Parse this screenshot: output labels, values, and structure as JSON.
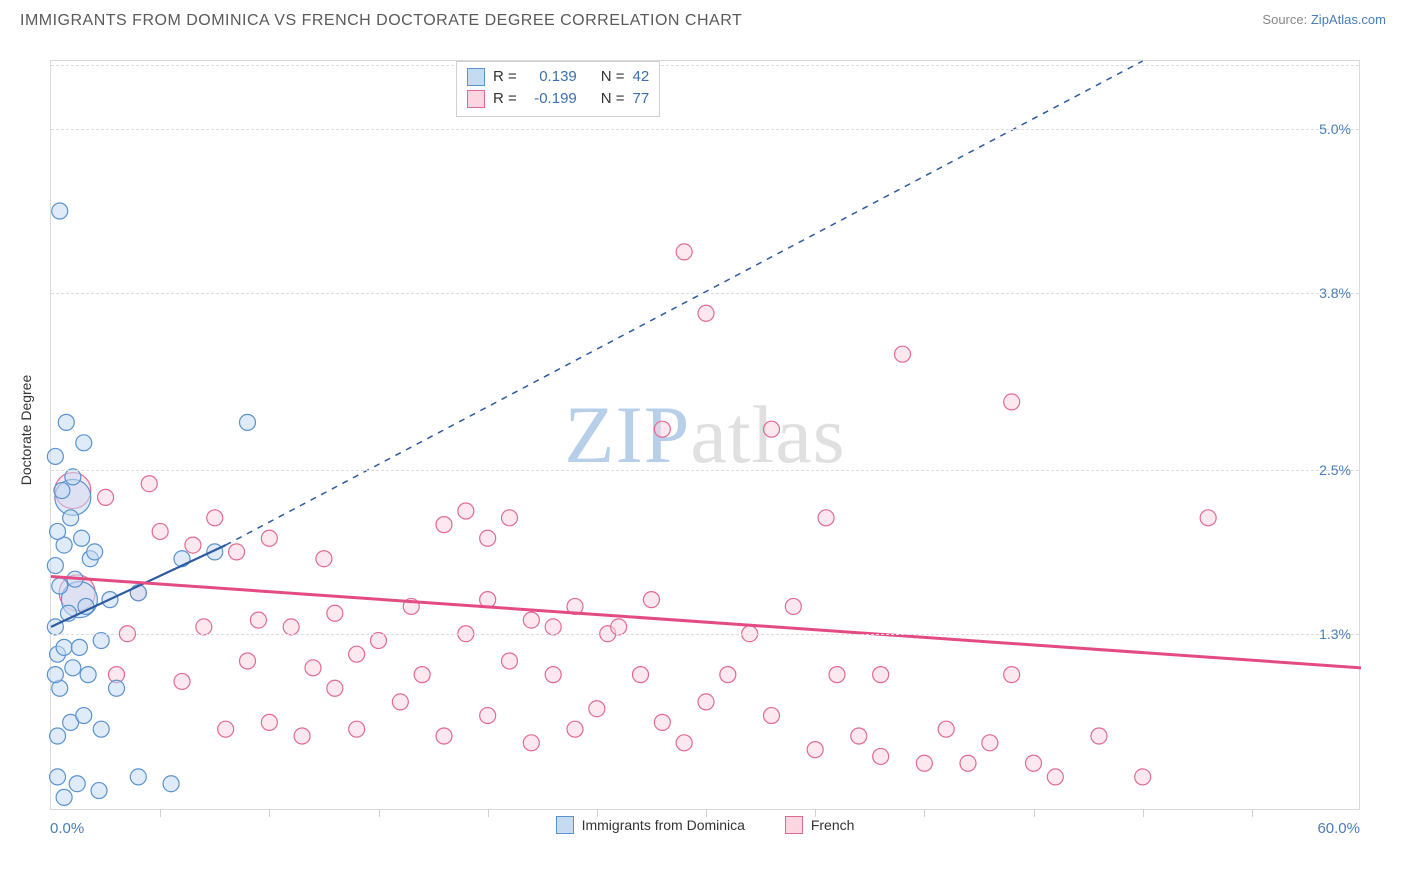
{
  "title": "IMMIGRANTS FROM DOMINICA VS FRENCH DOCTORATE DEGREE CORRELATION CHART",
  "source_label": "Source:",
  "source_name": "ZipAtlas.com",
  "watermark_a": "ZIP",
  "watermark_b": "atlas",
  "yaxis_title": "Doctorate Degree",
  "chart": {
    "type": "scatter-correlation",
    "background_color": "#ffffff",
    "grid_color": "#dcdcdc",
    "border_color": "#d9d9d9",
    "axis_label_color": "#4a7db5",
    "xlim": [
      0,
      60
    ],
    "ylim": [
      0,
      5.5
    ],
    "xticks_step": 5,
    "yticks": [
      1.3,
      2.5,
      3.8,
      5.0
    ],
    "xaxis_labels": {
      "min": "0.0%",
      "max": "60.0%"
    },
    "marker_radius": 8,
    "marker_radius_large": 18,
    "marker_stroke_width": 1.2,
    "series": [
      {
        "key": "dominica",
        "label": "Immigrants from Dominica",
        "color_fill": "#c5dbf2",
        "color_stroke": "#5a93cf",
        "r": "R =",
        "r_value": "0.139",
        "n": "N =",
        "n_value": "42",
        "trend": {
          "solid": {
            "x1": 0,
            "y1": 1.35,
            "x2": 8,
            "y2": 1.95
          },
          "dash": {
            "x1": 8,
            "y1": 1.95,
            "x2": 50,
            "y2": 5.5
          },
          "dash_pattern": "6,6",
          "width": 2.2
        },
        "points": [
          [
            0.3,
            0.25
          ],
          [
            0.6,
            0.1
          ],
          [
            1.2,
            0.2
          ],
          [
            2.2,
            0.15
          ],
          [
            4.0,
            0.25
          ],
          [
            5.5,
            0.2
          ],
          [
            0.3,
            0.55
          ],
          [
            0.9,
            0.65
          ],
          [
            1.5,
            0.7
          ],
          [
            0.4,
            0.9
          ],
          [
            0.2,
            1.0
          ],
          [
            1.0,
            1.05
          ],
          [
            1.7,
            1.0
          ],
          [
            0.3,
            1.15
          ],
          [
            0.6,
            1.2
          ],
          [
            1.3,
            1.2
          ],
          [
            2.3,
            1.25
          ],
          [
            0.2,
            1.35
          ],
          [
            0.8,
            1.45
          ],
          [
            1.6,
            1.5
          ],
          [
            2.7,
            1.55
          ],
          [
            0.4,
            1.65
          ],
          [
            1.1,
            1.7
          ],
          [
            0.2,
            1.8
          ],
          [
            1.8,
            1.85
          ],
          [
            0.6,
            1.95
          ],
          [
            1.4,
            2.0
          ],
          [
            2.0,
            1.9
          ],
          [
            0.3,
            2.05
          ],
          [
            0.9,
            2.15
          ],
          [
            0.5,
            2.35
          ],
          [
            1.0,
            2.45
          ],
          [
            0.2,
            2.6
          ],
          [
            1.5,
            2.7
          ],
          [
            0.7,
            2.85
          ],
          [
            9.0,
            2.85
          ],
          [
            0.4,
            4.4
          ],
          [
            6.0,
            1.85
          ],
          [
            7.5,
            1.9
          ],
          [
            4.0,
            1.6
          ],
          [
            3.0,
            0.9
          ],
          [
            2.3,
            0.6
          ]
        ],
        "big_points": [
          [
            1.3,
            1.55
          ],
          [
            1.0,
            2.3
          ]
        ]
      },
      {
        "key": "french",
        "label": "French",
        "color_fill": "#fbd6e1",
        "color_stroke": "#e16a94",
        "r": "R =",
        "r_value": "-0.199",
        "n": "N =",
        "n_value": "77",
        "trend": {
          "solid": {
            "x1": 0,
            "y1": 1.72,
            "x2": 60,
            "y2": 1.05
          },
          "dash": null,
          "width": 3
        },
        "points": [
          [
            3,
            1.0
          ],
          [
            4,
            1.6
          ],
          [
            5,
            2.05
          ],
          [
            6,
            0.95
          ],
          [
            6.5,
            1.95
          ],
          [
            7,
            1.35
          ],
          [
            7.5,
            2.15
          ],
          [
            8,
            0.6
          ],
          [
            8.5,
            1.9
          ],
          [
            9,
            1.1
          ],
          [
            9.5,
            1.4
          ],
          [
            10,
            0.65
          ],
          [
            10,
            2.0
          ],
          [
            11,
            1.35
          ],
          [
            11.5,
            0.55
          ],
          [
            12,
            1.05
          ],
          [
            12.5,
            1.85
          ],
          [
            13,
            0.9
          ],
          [
            13,
            1.45
          ],
          [
            14,
            0.6
          ],
          [
            14,
            1.15
          ],
          [
            15,
            1.25
          ],
          [
            16,
            0.8
          ],
          [
            16.5,
            1.5
          ],
          [
            17,
            1.0
          ],
          [
            18,
            2.1
          ],
          [
            18,
            0.55
          ],
          [
            19,
            2.2
          ],
          [
            19,
            1.3
          ],
          [
            20,
            0.7
          ],
          [
            20,
            1.55
          ],
          [
            21,
            2.15
          ],
          [
            21,
            1.1
          ],
          [
            22,
            0.5
          ],
          [
            22,
            1.4
          ],
          [
            23,
            1.0
          ],
          [
            23,
            1.35
          ],
          [
            24,
            0.6
          ],
          [
            24,
            1.5
          ],
          [
            25,
            0.75
          ],
          [
            25.5,
            1.3
          ],
          [
            26,
            1.35
          ],
          [
            27,
            1.0
          ],
          [
            27.5,
            1.55
          ],
          [
            28,
            2.8
          ],
          [
            28,
            0.65
          ],
          [
            29,
            4.1
          ],
          [
            29,
            0.5
          ],
          [
            30,
            3.65
          ],
          [
            30,
            0.8
          ],
          [
            31,
            1.0
          ],
          [
            32,
            1.3
          ],
          [
            33,
            0.7
          ],
          [
            33,
            2.8
          ],
          [
            34,
            1.5
          ],
          [
            35,
            0.45
          ],
          [
            35.5,
            2.15
          ],
          [
            36,
            1.0
          ],
          [
            37,
            0.55
          ],
          [
            38,
            0.4
          ],
          [
            38,
            1.0
          ],
          [
            39,
            3.35
          ],
          [
            40,
            0.35
          ],
          [
            41,
            0.6
          ],
          [
            42,
            0.35
          ],
          [
            43,
            0.5
          ],
          [
            44,
            3.0
          ],
          [
            45,
            0.35
          ],
          [
            46,
            0.25
          ],
          [
            48,
            0.55
          ],
          [
            50,
            0.25
          ],
          [
            53,
            2.15
          ],
          [
            44,
            1.0
          ],
          [
            20,
            2.0
          ],
          [
            4.5,
            2.4
          ],
          [
            2.5,
            2.3
          ],
          [
            3.5,
            1.3
          ]
        ],
        "big_points": [
          [
            1.2,
            1.6
          ],
          [
            1.0,
            2.35
          ]
        ]
      }
    ]
  },
  "legend_bottom": [
    {
      "color_fill": "#c5dbf2",
      "color_stroke": "#5a93cf",
      "label": "Immigrants from Dominica"
    },
    {
      "color_fill": "#fbd6e1",
      "color_stroke": "#e16a94",
      "label": "French"
    }
  ]
}
